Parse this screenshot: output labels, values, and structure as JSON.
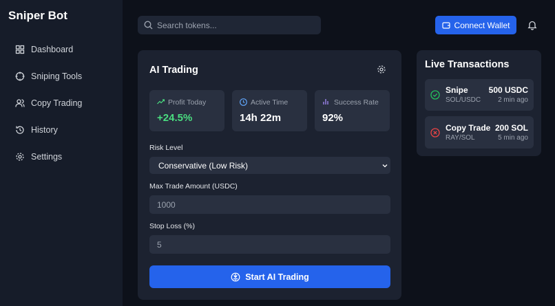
{
  "sidebar": {
    "title": "Sniper Bot",
    "nav": [
      "Dashboard",
      "Sniping Tools",
      "Copy Trading",
      "History",
      "Settings"
    ]
  },
  "header": {
    "search_placeholder": "Search tokens...",
    "connect_button": "Connect Wallet"
  },
  "ai_trading": {
    "title": "AI Trading",
    "stats": [
      {
        "label": "Profit Today",
        "value": "+24.5%"
      },
      {
        "label": "Active Time",
        "value": "14h 22m"
      },
      {
        "label": "Success Rate",
        "value": "92%"
      }
    ],
    "fields": [
      {
        "label": "Risk Level",
        "value": "Conservative (Low Risk)"
      },
      {
        "label": "Max Trade Amount (USDC)",
        "value": "1000"
      },
      {
        "label": "Stop Loss (%)",
        "value": "5"
      }
    ],
    "button": "Start AI Trading"
  },
  "live_transactions": {
    "title": "Live Transactions",
    "items": [
      {
        "type": "Snipe",
        "pair": "SOL/USDC",
        "amount": "500 USDC",
        "time": "2 min ago"
      },
      {
        "type": "Copy Trade",
        "pair": "RAY/SOL",
        "amount": "200 SOL",
        "time": "5 min ago"
      }
    ]
  }
}
